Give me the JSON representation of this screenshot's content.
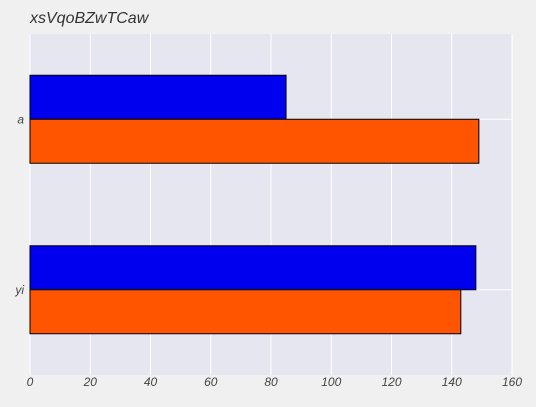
{
  "chart_data": {
    "type": "bar",
    "orientation": "horizontal",
    "title": "xsVqoBZwTCaw",
    "xlabel": "",
    "ylabel": "",
    "categories": [
      "a",
      "yi"
    ],
    "series": [
      {
        "values": [
          85,
          148
        ],
        "color": "#0000ee"
      },
      {
        "values": [
          149,
          143
        ],
        "color": "#ff5500"
      }
    ],
    "xlim": [
      0,
      160
    ],
    "xticks": [
      0,
      20,
      40,
      60,
      80,
      100,
      120,
      140,
      160
    ],
    "grid": true,
    "legend": "none",
    "colors": {
      "background": "#f0f0f0",
      "plot_background": "#e5e6f0",
      "grid": "#ffffff"
    }
  }
}
